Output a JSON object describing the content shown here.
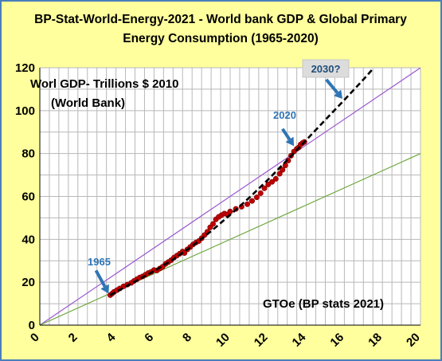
{
  "chart_data": {
    "type": "scatter",
    "title_lines": [
      "BP-Stat-World-Energy-2021 - World bank GDP & Global Primary",
      "Energy Consumption  (1965-2020)"
    ],
    "xlim": [
      0,
      20
    ],
    "ylim": [
      0,
      120
    ],
    "x_ticks": [
      "0",
      "2",
      "4",
      "6",
      "8",
      "10",
      "12",
      "14",
      "16",
      "18",
      "20"
    ],
    "y_ticks": [
      "0",
      "20",
      "40",
      "60",
      "80",
      "100",
      "120"
    ],
    "grid": true,
    "annotations": {
      "gdp_label_1": "Worl GDP- Trillions $ 2010",
      "gdp_label_2": "(World Bank)",
      "energy_label": "GTOe (BP stats 2021)",
      "label_1965": "1965",
      "label_2020": "2020",
      "label_2030": "2030?"
    },
    "observed_points": [
      [
        3.7,
        14.0
      ],
      [
        3.8,
        14.7
      ],
      [
        3.9,
        15.5
      ],
      [
        4.05,
        16.3
      ],
      [
        4.2,
        17.1
      ],
      [
        4.4,
        18.1
      ],
      [
        4.6,
        18.9
      ],
      [
        4.8,
        19.7
      ],
      [
        4.95,
        20.6
      ],
      [
        5.1,
        21.4
      ],
      [
        5.25,
        22.2
      ],
      [
        5.4,
        22.7
      ],
      [
        5.55,
        23.5
      ],
      [
        5.7,
        24.3
      ],
      [
        5.85,
        24.8
      ],
      [
        6.0,
        25.7
      ],
      [
        6.15,
        25.5
      ],
      [
        6.3,
        26.4
      ],
      [
        6.45,
        27.2
      ],
      [
        6.6,
        28.5
      ],
      [
        6.75,
        29.4
      ],
      [
        6.9,
        30.3
      ],
      [
        7.05,
        31.5
      ],
      [
        7.2,
        32.4
      ],
      [
        7.35,
        33.3
      ],
      [
        7.5,
        34.3
      ],
      [
        7.6,
        33.6
      ],
      [
        7.75,
        35.3
      ],
      [
        7.9,
        36.4
      ],
      [
        8.05,
        37.6
      ],
      [
        8.2,
        38.5
      ],
      [
        8.35,
        39.2
      ],
      [
        8.5,
        40.5
      ],
      [
        8.65,
        42.0
      ],
      [
        8.8,
        43.5
      ],
      [
        8.95,
        45.6
      ],
      [
        9.1,
        47.2
      ],
      [
        9.25,
        49.3
      ],
      [
        9.4,
        50.5
      ],
      [
        9.55,
        51.3
      ],
      [
        9.7,
        52.0
      ],
      [
        9.85,
        51.6
      ],
      [
        10.0,
        53.0
      ],
      [
        10.3,
        54.2
      ],
      [
        10.6,
        55.2
      ],
      [
        10.9,
        56.4
      ],
      [
        11.15,
        57.9
      ],
      [
        11.4,
        59.6
      ],
      [
        11.6,
        61.5
      ],
      [
        11.8,
        63.8
      ],
      [
        12.0,
        65.6
      ],
      [
        12.2,
        66.8
      ],
      [
        12.4,
        68.2
      ],
      [
        12.6,
        70.6
      ],
      [
        12.75,
        72.4
      ],
      [
        12.9,
        74.5
      ],
      [
        13.05,
        76.7
      ],
      [
        13.2,
        79.0
      ],
      [
        13.35,
        80.9
      ],
      [
        13.5,
        82.2
      ],
      [
        13.6,
        82.8
      ],
      [
        13.7,
        84.2
      ],
      [
        13.8,
        84.9
      ],
      [
        13.9,
        85.4
      ]
    ],
    "trend_line_black_dashed": [
      [
        3.7,
        14.0
      ],
      [
        5.0,
        20.3
      ],
      [
        6.0,
        25.2
      ],
      [
        7.0,
        30.6
      ],
      [
        8.0,
        36.8
      ],
      [
        9.0,
        43.8
      ],
      [
        10.0,
        51.4
      ],
      [
        11.0,
        59.4
      ],
      [
        12.0,
        67.9
      ],
      [
        13.0,
        77.0
      ],
      [
        14.0,
        86.3
      ],
      [
        15.0,
        95.7
      ],
      [
        16.0,
        105.0
      ],
      [
        17.0,
        114.5
      ],
      [
        17.5,
        119.5
      ]
    ],
    "reference_line_purple": [
      [
        0,
        0
      ],
      [
        20,
        120
      ]
    ],
    "reference_line_green": [
      [
        0,
        0
      ],
      [
        20,
        80
      ]
    ],
    "colors": {
      "background": "#ffff9d",
      "frame_border": "#4a7ebb",
      "plot_background": "#ffffff",
      "grid": "#b8b8b8",
      "points": "#c00000",
      "points_outline": "#7a0000",
      "trend_line": "#000000",
      "reference_purple": "#9b59d0",
      "reference_green": "#70a840",
      "arrow": "#2f75b5",
      "box_2030": "#dcdcdc"
    }
  }
}
